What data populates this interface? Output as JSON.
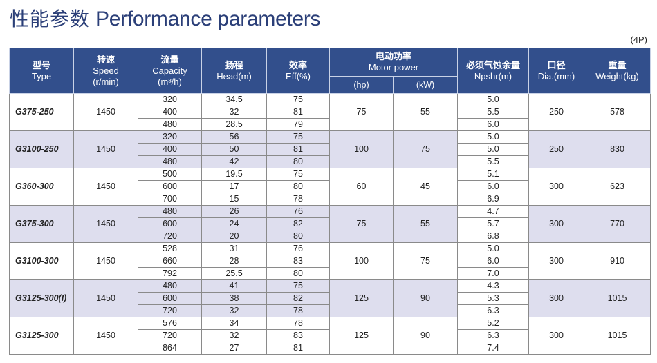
{
  "page": {
    "title_cn": "性能参数",
    "title_en": "Performance parameters",
    "note": "(4P)"
  },
  "headers": {
    "type_cn": "型号",
    "type_en": "Type",
    "speed_cn": "转速",
    "speed_en": "Speed",
    "speed_unit": "(r/min)",
    "cap_cn": "流量",
    "cap_en": "Capacity",
    "cap_unit": "(m³/h)",
    "head_cn": "扬程",
    "head_en": "Head(m)",
    "eff_cn": "效率",
    "eff_en": "Eff(%)",
    "motor_cn": "电动功率",
    "motor_en": "Motor power",
    "hp": "(hp)",
    "kw": "(kW)",
    "npshr_cn": "必须气蚀余量",
    "npshr_en": "Npshr(m)",
    "dia_cn": "口径",
    "dia_en": "Dia.(mm)",
    "weight_cn": "重量",
    "weight_en": "Weight(kg)"
  },
  "groups": [
    {
      "model": "G375-250",
      "speed": "1450",
      "hp": "75",
      "kw": "55",
      "dia": "250",
      "weight": "578",
      "shaded": false,
      "rows": [
        {
          "cap": "320",
          "head": "34.5",
          "eff": "75",
          "npshr": "5.0"
        },
        {
          "cap": "400",
          "head": "32",
          "eff": "81",
          "npshr": "5.5"
        },
        {
          "cap": "480",
          "head": "28.5",
          "eff": "79",
          "npshr": "6.0"
        }
      ]
    },
    {
      "model": "G3100-250",
      "speed": "1450",
      "hp": "100",
      "kw": "75",
      "dia": "250",
      "weight": "830",
      "shaded": true,
      "rows": [
        {
          "cap": "320",
          "head": "56",
          "eff": "75",
          "npshr": "5.0"
        },
        {
          "cap": "400",
          "head": "50",
          "eff": "81",
          "npshr": "5.0"
        },
        {
          "cap": "480",
          "head": "42",
          "eff": "80",
          "npshr": "5.5"
        }
      ]
    },
    {
      "model": "G360-300",
      "speed": "1450",
      "hp": "60",
      "kw": "45",
      "dia": "300",
      "weight": "623",
      "shaded": false,
      "rows": [
        {
          "cap": "500",
          "head": "19.5",
          "eff": "75",
          "npshr": "5.1"
        },
        {
          "cap": "600",
          "head": "17",
          "eff": "80",
          "npshr": "6.0"
        },
        {
          "cap": "700",
          "head": "15",
          "eff": "78",
          "npshr": "6.9"
        }
      ]
    },
    {
      "model": "G375-300",
      "speed": "1450",
      "hp": "75",
      "kw": "55",
      "dia": "300",
      "weight": "770",
      "shaded": true,
      "rows": [
        {
          "cap": "480",
          "head": "26",
          "eff": "76",
          "npshr": "4.7"
        },
        {
          "cap": "600",
          "head": "24",
          "eff": "82",
          "npshr": "5.7"
        },
        {
          "cap": "720",
          "head": "20",
          "eff": "80",
          "npshr": "6.8"
        }
      ]
    },
    {
      "model": "G3100-300",
      "speed": "1450",
      "hp": "100",
      "kw": "75",
      "dia": "300",
      "weight": "910",
      "shaded": false,
      "rows": [
        {
          "cap": "528",
          "head": "31",
          "eff": "76",
          "npshr": "5.0"
        },
        {
          "cap": "660",
          "head": "28",
          "eff": "83",
          "npshr": "6.0"
        },
        {
          "cap": "792",
          "head": "25.5",
          "eff": "80",
          "npshr": "7.0"
        }
      ]
    },
    {
      "model": "G3125-300(I)",
      "speed": "1450",
      "hp": "125",
      "kw": "90",
      "dia": "300",
      "weight": "1015",
      "shaded": true,
      "rows": [
        {
          "cap": "480",
          "head": "41",
          "eff": "75",
          "npshr": "4.3"
        },
        {
          "cap": "600",
          "head": "38",
          "eff": "82",
          "npshr": "5.3"
        },
        {
          "cap": "720",
          "head": "32",
          "eff": "78",
          "npshr": "6.3"
        }
      ]
    },
    {
      "model": "G3125-300",
      "speed": "1450",
      "hp": "125",
      "kw": "90",
      "dia": "300",
      "weight": "1015",
      "shaded": false,
      "rows": [
        {
          "cap": "576",
          "head": "34",
          "eff": "78",
          "npshr": "5.2"
        },
        {
          "cap": "720",
          "head": "32",
          "eff": "83",
          "npshr": "6.3"
        },
        {
          "cap": "864",
          "head": "27",
          "eff": "81",
          "npshr": "7.4"
        }
      ]
    }
  ]
}
